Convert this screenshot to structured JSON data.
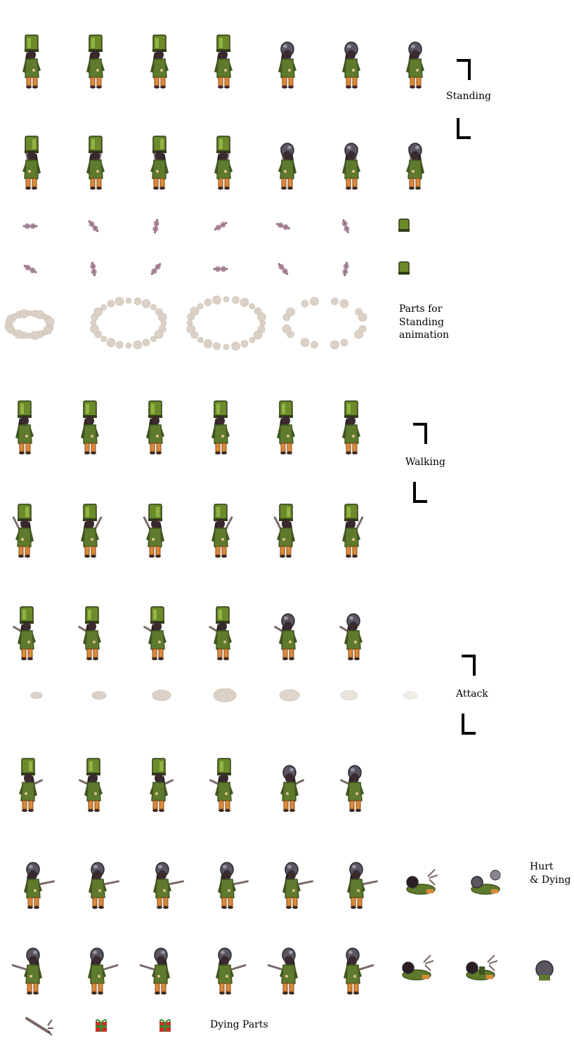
{
  "labels": {
    "standing": "Standing",
    "parts_standing_1": "Parts for",
    "parts_standing_2": "Standing",
    "parts_standing_3": "animation",
    "walking": "Walking",
    "attack": "Attack",
    "hurt_1": "Hurt",
    "hurt_2": "& Dying",
    "dying_parts": "Dying Parts"
  },
  "palette": {
    "coat": "#5e7a2c",
    "coat_dark": "#3f5620",
    "hat": "#6b8a2a",
    "hat_dark": "#2f3d16",
    "face": "#3a2a2e",
    "hair": "#2a1f22",
    "boots": "#d98b3a",
    "sword": "#7a6a66",
    "helmet": "#5a5560",
    "smoke": "#dcd1c6",
    "smoke_dark": "#c8b8aa",
    "gift": "#c8302a",
    "gift_ribbon": "#3f8a2a",
    "bracket": "#000000"
  },
  "rows": {
    "standing_a": [
      "hat",
      "hat",
      "hat",
      "hat",
      "helmet",
      "helmet",
      "helmet"
    ],
    "standing_b": [
      "hat",
      "hat",
      "hat",
      "hat",
      "helmet",
      "helmet",
      "helmet"
    ],
    "walking_a": [
      "hat",
      "hat",
      "hat",
      "hat",
      "hat",
      "hat"
    ],
    "walking_b": [
      "hat",
      "hat",
      "hat",
      "hat",
      "hat",
      "hat"
    ],
    "attack_a": [
      "hat",
      "hat",
      "hat",
      "hat",
      "helmet",
      "helmet"
    ],
    "attack_b": [
      "hat",
      "hat",
      "hat",
      "hat",
      "helmet",
      "helmet"
    ],
    "hurt_a": [
      "helmet",
      "helmet",
      "helmet",
      "helmet",
      "helmet",
      "helmet",
      "fallen",
      "fallen-ball"
    ],
    "hurt_b": [
      "helmet",
      "helmet",
      "helmet",
      "helmet",
      "helmet",
      "helmet",
      "fallen",
      "fallen-sit",
      "ball"
    ]
  }
}
